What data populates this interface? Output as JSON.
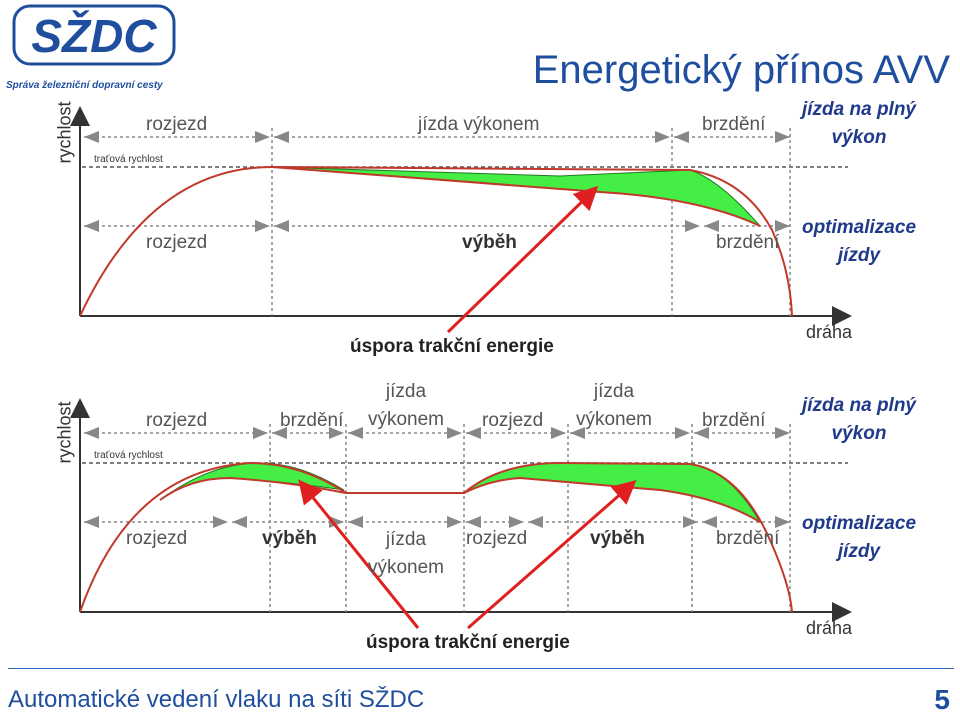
{
  "logo": {
    "mark": "SŽDC",
    "subtitle": "Správa železniční dopravní cesty"
  },
  "title": "Energetický přínos AVV",
  "top_diagram": {
    "y_axis_label": "rychlost",
    "x_axis_label": "dráha",
    "speed_line_label": "traťová rychlost",
    "full_power_row": [
      "rozjezd",
      "jízda výkonem",
      "brzdění"
    ],
    "full_power_side": [
      "jízda na plný",
      "výkon"
    ],
    "optimized_row": [
      "rozjezd",
      "výběh",
      "brzdění"
    ],
    "optimized_side": [
      "optimalizace",
      "jízdy"
    ],
    "saving_label": "úspora trakční energie"
  },
  "bottom_diagram": {
    "y_axis_label": "rychlost",
    "x_axis_label": "dráha",
    "speed_line_label": "traťová rychlost",
    "full_power_row": [
      "rozjezd",
      "brzdění",
      "jízda",
      "výkonem",
      "rozjezd",
      "jízda",
      "výkonem",
      "brzdění"
    ],
    "full_power_side": [
      "jízda na plný",
      "výkon"
    ],
    "optimized_row": [
      "rozjezd",
      "výběh",
      "jízda",
      "výkonem",
      "rozjezd",
      "výběh",
      "brzdění"
    ],
    "optimized_side": [
      "optimalizace",
      "jízdy"
    ],
    "saving_label": "úspora trakční energie"
  },
  "colors": {
    "brand_blue": "#1f4e9e",
    "curve": "#c0392b",
    "saving_fill": "#44ee44",
    "arrow": "#e02020",
    "dim_gray": "#888888"
  },
  "footer": {
    "text": "Automatické vedení vlaku na síti SŽDC",
    "page": "5"
  }
}
